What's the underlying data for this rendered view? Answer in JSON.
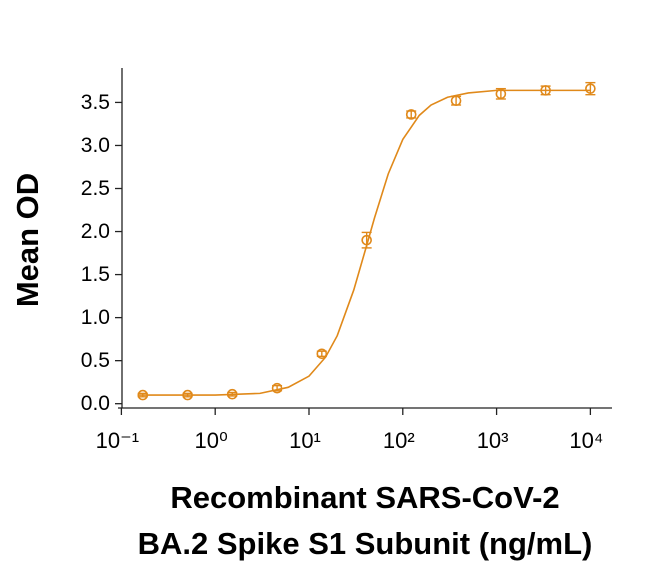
{
  "chart_data": {
    "type": "scatter",
    "ylabel": "Mean OD",
    "xlabel": [
      "Recombinant SARS-CoV-2",
      "BA.2 Spike S1 Subunit (ng/mL)"
    ],
    "color": "#e0891a",
    "xscale": "log",
    "x": [
      0.169,
      0.508,
      1.52,
      4.57,
      13.7,
      41.2,
      123,
      370,
      1111,
      3333,
      10000
    ],
    "values": [
      0.1,
      0.1,
      0.11,
      0.18,
      0.58,
      1.9,
      3.36,
      3.52,
      3.6,
      3.64,
      3.66
    ],
    "errors": [
      0.02,
      0.02,
      0.02,
      0.03,
      0.03,
      0.09,
      0.04,
      0.05,
      0.06,
      0.05,
      0.07
    ],
    "fit_x": [
      0.15,
      1,
      3,
      6,
      10,
      15,
      20,
      30,
      40,
      50,
      70,
      100,
      150,
      200,
      300,
      500,
      1000,
      3000,
      10000
    ],
    "fit_y": [
      0.1,
      0.1,
      0.12,
      0.19,
      0.32,
      0.54,
      0.79,
      1.32,
      1.79,
      2.16,
      2.67,
      3.07,
      3.35,
      3.47,
      3.56,
      3.61,
      3.64,
      3.64,
      3.64
    ],
    "xlim": [
      0.092,
      17000
    ],
    "ylim": [
      -0.05,
      3.9
    ],
    "xticks": [
      {
        "value": 0.1,
        "label": "10⁻¹"
      },
      {
        "value": 1,
        "label": "10⁰"
      },
      {
        "value": 10,
        "label": "10¹"
      },
      {
        "value": 100,
        "label": "10²"
      },
      {
        "value": 1000,
        "label": "10³"
      },
      {
        "value": 10000,
        "label": "10⁴"
      }
    ],
    "yticks": [
      {
        "value": 0,
        "label": "0.0"
      },
      0.5,
      {
        "value": 1,
        "label": "1.0"
      },
      1.5,
      {
        "value": 2,
        "label": "2.0"
      },
      2.5,
      {
        "value": 3,
        "label": "3.0"
      },
      3.5
    ]
  }
}
